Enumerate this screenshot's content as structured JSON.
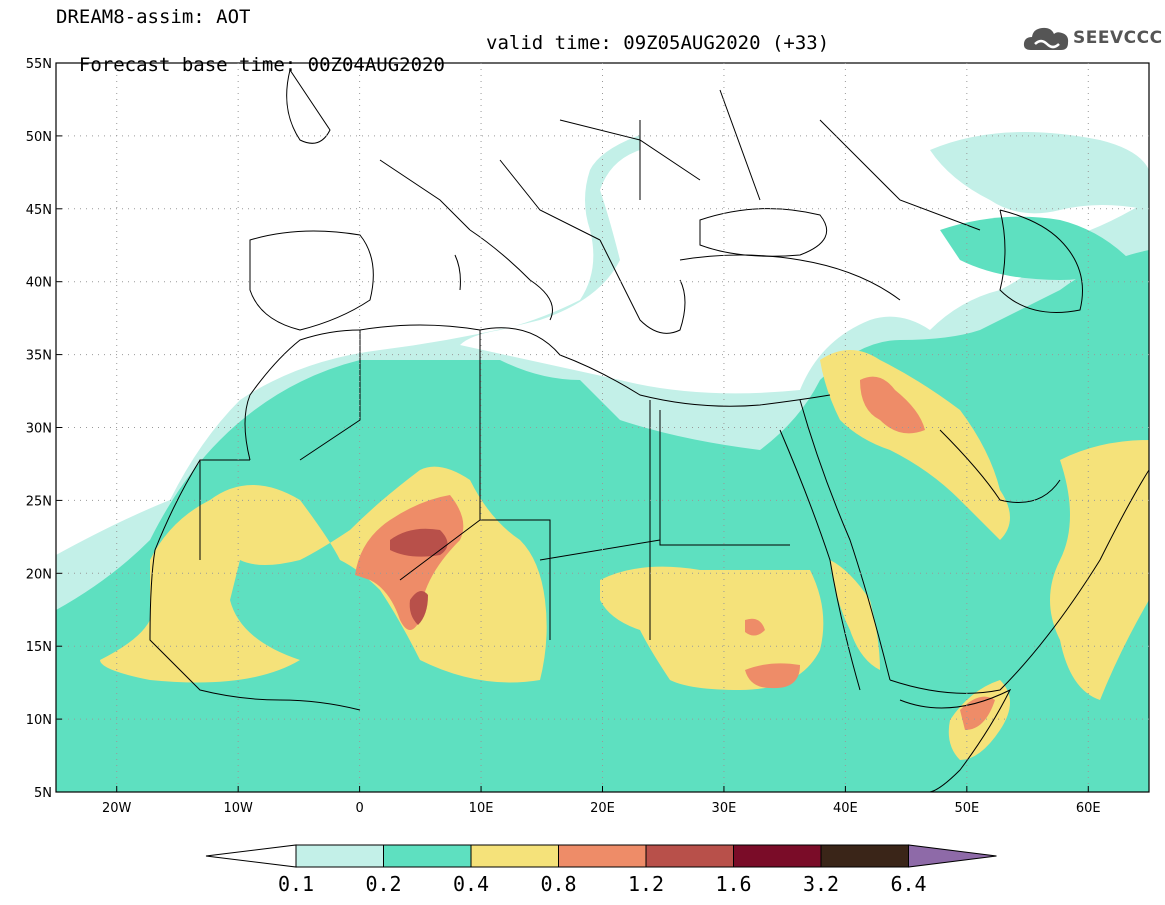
{
  "header": {
    "title": "DREAM8-assim: AOT",
    "base_time": "Forecast base time: 00Z04AUG2020",
    "valid_time": "valid time: 09Z05AUG2020 (+33)",
    "logo_text": "SEEVCCC"
  },
  "map": {
    "lat_labels": [
      "55N",
      "50N",
      "45N",
      "40N",
      "35N",
      "30N",
      "25N",
      "20N",
      "15N",
      "10N",
      "5N"
    ],
    "lon_labels": [
      "20W",
      "10W",
      "0",
      "10E",
      "20E",
      "30E",
      "40E",
      "50E",
      "60E"
    ],
    "lon_range": [
      -25,
      65
    ],
    "lat_range": [
      5,
      55
    ]
  },
  "colorbar": {
    "labels": [
      "0.1",
      "0.2",
      "0.4",
      "0.8",
      "1.2",
      "1.6",
      "3.2",
      "6.4"
    ],
    "colors": [
      "#ffffff",
      "#c3f0e8",
      "#5ee0c0",
      "#f5e27a",
      "#ee8c68",
      "#b8504a",
      "#7a0c28",
      "#3a2518",
      "#8e6aa8"
    ]
  },
  "aot_colors": {
    "level_01": "#c3f0e8",
    "level_02": "#5ee0c0",
    "level_04": "#f5e27a",
    "level_08": "#ee8c68",
    "level_12": "#b8504a"
  }
}
